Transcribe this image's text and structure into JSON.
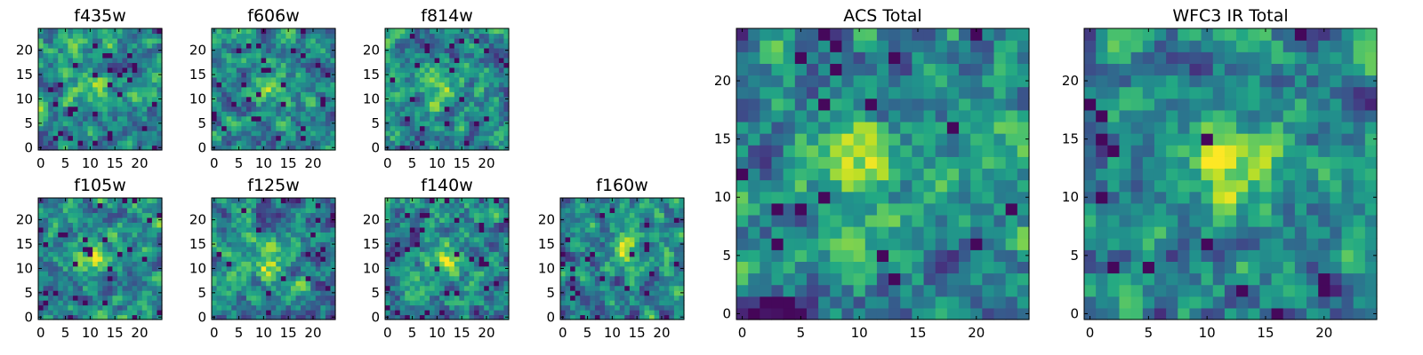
{
  "figure": {
    "colormap": "viridis",
    "grid": false,
    "legend": "none"
  },
  "chart_data": [
    {
      "type": "heatmap",
      "title": "f435w",
      "grid_size": 25,
      "xlim": [
        -0.5,
        24.5
      ],
      "ylim": [
        -0.5,
        24.5
      ],
      "xticks": [
        0,
        5,
        10,
        15,
        20
      ],
      "yticks": [
        0,
        5,
        10,
        15,
        20
      ],
      "xtick_labels": [
        "0",
        "5",
        "10",
        "15",
        "20"
      ],
      "ytick_labels": [
        "0",
        "5",
        "10",
        "15",
        "20"
      ],
      "seed": 11,
      "hot_spot": [
        11,
        12
      ],
      "hot_strength": 0.25,
      "dark_fraction": 0.05
    },
    {
      "type": "heatmap",
      "title": "f606w",
      "grid_size": 25,
      "xlim": [
        -0.5,
        24.5
      ],
      "ylim": [
        -0.5,
        24.5
      ],
      "xticks": [
        0,
        5,
        10,
        15,
        20
      ],
      "yticks": [
        0,
        5,
        10,
        15,
        20
      ],
      "xtick_labels": [
        "0",
        "5",
        "10",
        "15",
        "20"
      ],
      "ytick_labels": [
        "0",
        "5",
        "10",
        "15",
        "20"
      ],
      "seed": 23,
      "hot_spot": [
        11,
        12
      ],
      "hot_strength": 0.35,
      "dark_fraction": 0.04
    },
    {
      "type": "heatmap",
      "title": "f814w",
      "grid_size": 25,
      "xlim": [
        -0.5,
        24.5
      ],
      "ylim": [
        -0.5,
        24.5
      ],
      "xticks": [
        0,
        5,
        10,
        15,
        20
      ],
      "yticks": [
        0,
        5,
        10,
        15,
        20
      ],
      "xtick_labels": [
        "0",
        "5",
        "10",
        "15",
        "20"
      ],
      "ytick_labels": [
        "0",
        "5",
        "10",
        "15",
        "20"
      ],
      "seed": 37,
      "hot_spot": [
        11,
        12
      ],
      "hot_strength": 0.3,
      "dark_fraction": 0.04
    },
    {
      "type": "heatmap",
      "title": "f105w",
      "grid_size": 25,
      "xlim": [
        -0.5,
        24.5
      ],
      "ylim": [
        -0.5,
        24.5
      ],
      "xticks": [
        0,
        5,
        10,
        15,
        20
      ],
      "yticks": [
        0,
        5,
        10,
        15,
        20
      ],
      "xtick_labels": [
        "0",
        "5",
        "10",
        "15",
        "20"
      ],
      "ytick_labels": [
        "0",
        "5",
        "10",
        "15",
        "20"
      ],
      "seed": 41,
      "hot_spot": [
        11,
        13
      ],
      "hot_strength": 0.4,
      "dark_fraction": 0.05
    },
    {
      "type": "heatmap",
      "title": "f125w",
      "grid_size": 25,
      "xlim": [
        -0.5,
        24.5
      ],
      "ylim": [
        -0.5,
        24.5
      ],
      "xticks": [
        0,
        5,
        10,
        15,
        20
      ],
      "yticks": [
        0,
        5,
        10,
        15,
        20
      ],
      "xtick_labels": [
        "0",
        "5",
        "10",
        "15",
        "20"
      ],
      "ytick_labels": [
        "0",
        "5",
        "10",
        "15",
        "20"
      ],
      "seed": 53,
      "hot_spot": [
        11,
        11
      ],
      "hot_strength": 0.35,
      "dark_fraction": 0.03
    },
    {
      "type": "heatmap",
      "title": "f140w",
      "grid_size": 25,
      "xlim": [
        -0.5,
        24.5
      ],
      "ylim": [
        -0.5,
        24.5
      ],
      "xticks": [
        0,
        5,
        10,
        15,
        20
      ],
      "yticks": [
        0,
        5,
        10,
        15,
        20
      ],
      "xtick_labels": [
        "0",
        "5",
        "10",
        "15",
        "20"
      ],
      "ytick_labels": [
        "0",
        "5",
        "10",
        "15",
        "20"
      ],
      "seed": 67,
      "hot_spot": [
        11,
        12
      ],
      "hot_strength": 0.35,
      "dark_fraction": 0.04
    },
    {
      "type": "heatmap",
      "title": "f160w",
      "grid_size": 25,
      "xlim": [
        -0.5,
        24.5
      ],
      "ylim": [
        -0.5,
        24.5
      ],
      "xticks": [
        0,
        5,
        10,
        15,
        20
      ],
      "yticks": [
        0,
        5,
        10,
        15,
        20
      ],
      "xtick_labels": [
        "0",
        "5",
        "10",
        "15",
        "20"
      ],
      "ytick_labels": [
        "0",
        "5",
        "10",
        "15",
        "20"
      ],
      "seed": 79,
      "hot_spot": [
        13,
        14
      ],
      "hot_strength": 0.4,
      "dark_fraction": 0.04
    },
    {
      "type": "heatmap",
      "title": "ACS Total",
      "grid_size": 25,
      "xlim": [
        -0.5,
        24.5
      ],
      "ylim": [
        -0.5,
        24.5
      ],
      "xticks": [
        0,
        5,
        10,
        15,
        20
      ],
      "yticks": [
        0,
        5,
        10,
        15,
        20
      ],
      "xtick_labels": [
        "0",
        "5",
        "10",
        "15",
        "20"
      ],
      "ytick_labels": [
        "0",
        "5",
        "10",
        "15",
        "20"
      ],
      "seed": 97,
      "hot_spot": [
        10,
        13
      ],
      "hot_strength": 0.35,
      "dark_fraction": 0.035
    },
    {
      "type": "heatmap",
      "title": "WFC3 IR Total",
      "grid_size": 25,
      "xlim": [
        -0.5,
        24.5
      ],
      "ylim": [
        -0.5,
        24.5
      ],
      "xticks": [
        0,
        5,
        10,
        15,
        20
      ],
      "yticks": [
        0,
        5,
        10,
        15,
        20
      ],
      "xtick_labels": [
        "0",
        "5",
        "10",
        "15",
        "20"
      ],
      "ytick_labels": [
        "0",
        "5",
        "10",
        "15",
        "20"
      ],
      "seed": 113,
      "hot_spot": [
        12,
        13
      ],
      "hot_strength": 0.45,
      "dark_fraction": 0.025
    }
  ]
}
